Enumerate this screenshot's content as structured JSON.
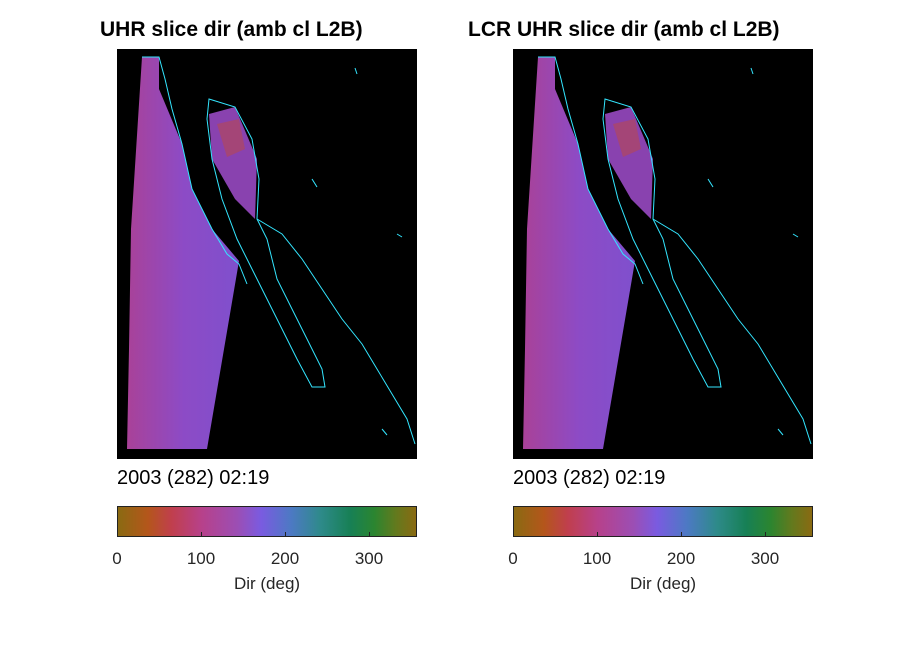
{
  "panels": [
    {
      "title": "UHR slice dir (amb cl L2B)",
      "timestamp": "2003 (282) 02:19",
      "colorbar": {
        "ticks": [
          "0",
          "100",
          "200",
          "300"
        ],
        "label": "Dir (deg)"
      }
    },
    {
      "title": "LCR UHR slice dir (amb cl L2B)",
      "timestamp": "2003 (282) 02:19",
      "colorbar": {
        "ticks": [
          "0",
          "100",
          "200",
          "300"
        ],
        "label": "Dir (deg)"
      }
    }
  ],
  "colors": {
    "background": "#000000",
    "coastline": "#33e6ff",
    "swath": "#9a4fc7",
    "swath_edge": "#c0449a"
  }
}
